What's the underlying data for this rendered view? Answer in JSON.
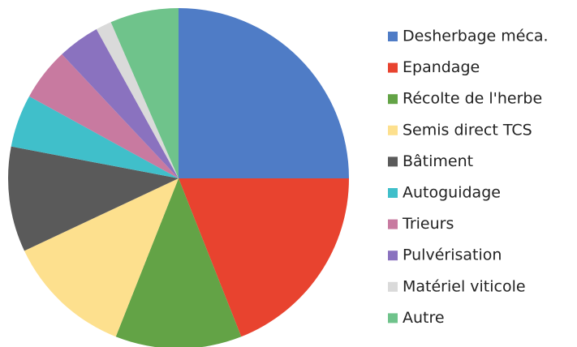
{
  "chart_data": {
    "type": "pie",
    "categories": [
      "Desherbage méca.",
      "Epandage",
      "Récolte de l'herbe",
      "Semis direct TCS",
      "Bâtiment",
      "Autoguidage",
      "Trieurs",
      "Pulvérisation",
      "Matériel viticole",
      "Autre"
    ],
    "values": [
      25,
      19,
      12,
      12,
      10,
      5,
      5,
      4,
      1.5,
      6.5
    ],
    "colors": [
      "#4f7cc6",
      "#e8432f",
      "#63a346",
      "#fde08e",
      "#5a5a5a",
      "#40bfca",
      "#c87aa0",
      "#8a72bf",
      "#dadada",
      "#6fc38b"
    ],
    "legend": "right"
  }
}
